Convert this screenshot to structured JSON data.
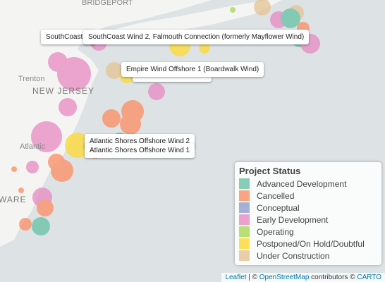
{
  "map_labels": {
    "city_1": "BRIDGEPORT",
    "city_2": "Trenton",
    "state_1": "NEW JERSEY",
    "city_3": "Atlantic",
    "state_2": "WARE"
  },
  "tooltips": [
    "SouthCoast W",
    "SouthCoast Wind 2, Falmouth Connection (formerly Mayflower Wind)",
    "Empire Wind Offshore 1 (Boardwalk Wind)",
    "Atlantic Shores Offshore Wind 2",
    "Atlantic Shores Offshore Wind 1"
  ],
  "legend": {
    "title": "Project Status",
    "entries": [
      {
        "label": "Advanced Development",
        "color": "#66c2a5"
      },
      {
        "label": "Cancelled",
        "color": "#fc8d62"
      },
      {
        "label": "Conceptual",
        "color": "#8da0cb"
      },
      {
        "label": "Early Development",
        "color": "#e78ac3"
      },
      {
        "label": "Operating",
        "color": "#a6d854"
      },
      {
        "label": "Postponed/On Hold/Doubtful",
        "color": "#ffd92f"
      },
      {
        "label": "Under Construction",
        "color": "#e5c494"
      }
    ]
  },
  "attribution": {
    "leaflet": "Leaflet",
    "sep": "| ©",
    "osm": "OpenStreetMap",
    "contrib": "contributors ©",
    "carto": "CARTO"
  }
}
